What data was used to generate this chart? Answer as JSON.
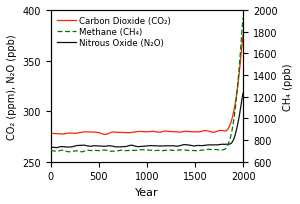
{
  "title": "",
  "xlabel": "Year",
  "ylabel_left": "CO₂ (ppm), N₂O (ppb)",
  "ylabel_right": "CH₄ (ppb)",
  "xlim": [
    0,
    2000
  ],
  "ylim_left": [
    250,
    400
  ],
  "ylim_right": [
    600,
    2000
  ],
  "yticks_left": [
    250,
    300,
    350,
    400
  ],
  "yticks_right": [
    600,
    800,
    1000,
    1200,
    1400,
    1600,
    1800,
    2000
  ],
  "xticks": [
    0,
    500,
    1000,
    1500,
    2000
  ],
  "legend_entries": [
    {
      "label": "Carbon Dioxide (CO₂)",
      "color": "#ff2200",
      "linestyle": "-"
    },
    {
      "label": "Methane (CH₄)",
      "color": "#007700",
      "linestyle": "--"
    },
    {
      "label": "Nitrous Oxide (N₂O)",
      "color": "#111111",
      "linestyle": "-"
    }
  ],
  "background_color": "#ffffff",
  "co2_baseline": 278,
  "n2o_baseline": 265,
  "ch4_baseline": 700,
  "figsize": [
    3.0,
    2.05
  ],
  "dpi": 100
}
